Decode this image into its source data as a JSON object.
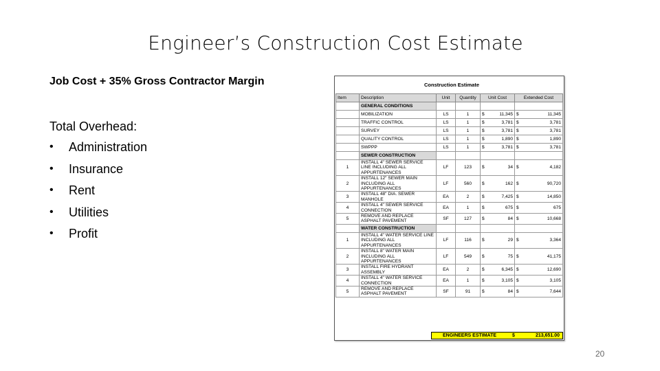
{
  "slide": {
    "title": "Engineer’s Construction Cost Estimate",
    "subtitle": "Job Cost + 35% Gross Contractor Margin",
    "overhead_label": "Total Overhead:",
    "bullets": [
      "Administration",
      "Insurance",
      "Rent",
      "Utilities",
      "Profit"
    ],
    "page_number": "20"
  },
  "estimate": {
    "title": "Construction Estimate",
    "headers": {
      "item": "Item",
      "description": "Description",
      "unit": "Unit",
      "quantity": "Quantity",
      "unit_cost": "Unit Cost",
      "extended_cost": "Extended Cost"
    },
    "currency": "$",
    "sections": [
      {
        "name": "GENERAL CONDITIONS",
        "rows": [
          {
            "item": "",
            "description": "MOBILIZATION",
            "unit": "LS",
            "qty": "1",
            "unit_cost": "11,345",
            "extended": "11,345"
          },
          {
            "item": "",
            "description": "TRAFFIC CONTROL",
            "unit": "LS",
            "qty": "1",
            "unit_cost": "3,781",
            "extended": "3,781"
          },
          {
            "item": "",
            "description": "SURVEY",
            "unit": "LS",
            "qty": "1",
            "unit_cost": "3,781",
            "extended": "3,781"
          },
          {
            "item": "",
            "description": "QUALITY CONTROL",
            "unit": "LS",
            "qty": "1",
            "unit_cost": "1,890",
            "extended": "1,890"
          },
          {
            "item": "",
            "description": "SWPPP",
            "unit": "LS",
            "qty": "1",
            "unit_cost": "3,781",
            "extended": "3,781"
          }
        ]
      },
      {
        "name": "SEWER CONSTRUCTION",
        "rows": [
          {
            "item": "1",
            "description": "Install 4\" Sewer Service Line Including All Appurtenances",
            "unit": "LF",
            "qty": "123",
            "unit_cost": "34",
            "extended": "4,182"
          },
          {
            "item": "2",
            "description": "Install 12\" Sewer Main Including All Appurtenances",
            "unit": "LF",
            "qty": "560",
            "unit_cost": "162",
            "extended": "90,720"
          },
          {
            "item": "3",
            "description": "Install 48\" Dia. Sewer Manhole",
            "unit": "EA",
            "qty": "2",
            "unit_cost": "7,425",
            "extended": "14,850"
          },
          {
            "item": "4",
            "description": "Install 4\" Sewer Service Connection",
            "unit": "EA",
            "qty": "1",
            "unit_cost": "675",
            "extended": "675"
          },
          {
            "item": "5",
            "description": "Remove and Replace Asphalt Pavement",
            "unit": "SF",
            "qty": "127",
            "unit_cost": "84",
            "extended": "10,668"
          }
        ]
      },
      {
        "name": "WATER CONSTRUCTION",
        "rows": [
          {
            "item": "1",
            "description": "Install 4\" Water Service Line Including All Appurtenances",
            "unit": "LF",
            "qty": "116",
            "unit_cost": "29",
            "extended": "3,364"
          },
          {
            "item": "2",
            "description": "Install 8\" Water Main Including All Appurtenances",
            "unit": "LF",
            "qty": "549",
            "unit_cost": "75",
            "extended": "41,175"
          },
          {
            "item": "3",
            "description": "Install Fire Hydrant Assembly",
            "unit": "EA",
            "qty": "2",
            "unit_cost": "6,345",
            "extended": "12,690"
          },
          {
            "item": "4",
            "description": "Install 4\" Water Service Connection",
            "unit": "EA",
            "qty": "1",
            "unit_cost": "3,105",
            "extended": "3,105"
          },
          {
            "item": "5",
            "description": "Remove and Replace Asphalt Pavement",
            "unit": "SF",
            "qty": "91",
            "unit_cost": "84",
            "extended": "7,644"
          }
        ]
      }
    ],
    "total": {
      "label": "ENGINEERS ESTIMATE",
      "currency": "$",
      "amount": "213,651.00"
    },
    "colors": {
      "header_fill": "#d9d9d9",
      "total_fill": "#ffff00"
    }
  }
}
